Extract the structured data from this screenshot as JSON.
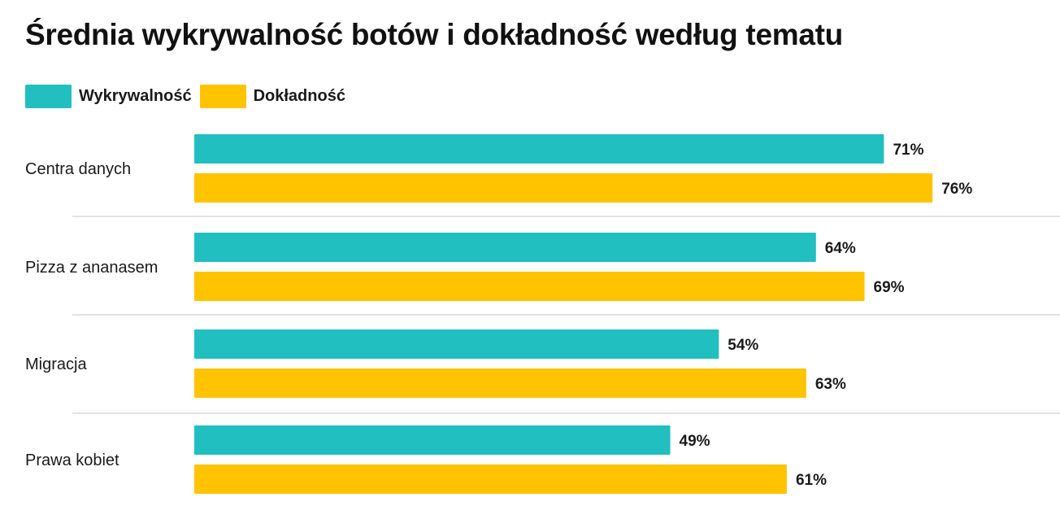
{
  "title": "Średnia wykrywalność botów i dokładność według tematu",
  "legend": [
    {
      "label": "Wykrywalność",
      "color": "#21bfbf"
    },
    {
      "label": "Dokładność",
      "color": "#ffc300"
    }
  ],
  "chart_data": {
    "type": "bar",
    "orientation": "horizontal",
    "title": "Średnia wykrywalność botów i dokładność według tematu",
    "categories": [
      "Centra danych",
      "Pizza z ananasem",
      "Migracja",
      "Prawa kobiet"
    ],
    "series": [
      {
        "name": "Wykrywalność",
        "color": "#21bfbf",
        "values": [
          71,
          64,
          54,
          49
        ],
        "labels": [
          "71%",
          "64%",
          "54%",
          "49%"
        ]
      },
      {
        "name": "Dokładność",
        "color": "#ffc300",
        "values": [
          76,
          69,
          63,
          61
        ],
        "labels": [
          "76%",
          "69%",
          "63%",
          "61%"
        ]
      }
    ],
    "value_unit": "%",
    "legend_position": "top-left",
    "grid": false,
    "group_separators": true
  }
}
